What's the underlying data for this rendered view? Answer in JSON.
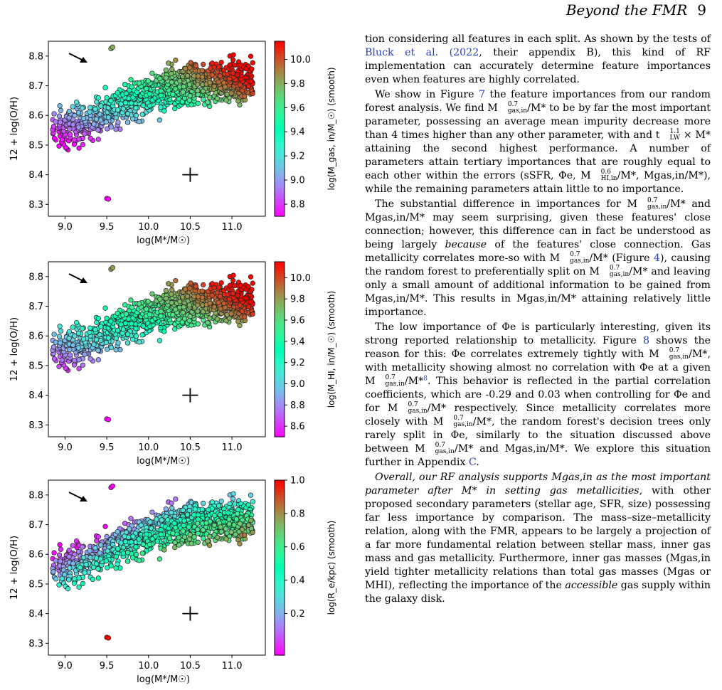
{
  "header": {
    "title": "Beyond the FMR",
    "page": "9"
  },
  "figures": [
    {
      "cbar_label": "log(M_gas, in/M_☉) (smooth)",
      "cbar_ticks": [
        8.8,
        9.0,
        9.2,
        9.4,
        9.6,
        9.8,
        10.0
      ],
      "cbar_range": [
        8.7,
        10.15
      ],
      "color_mode": "gasin"
    },
    {
      "cbar_label": "log(M_HI, in/M_☉) (smooth)",
      "cbar_ticks": [
        8.6,
        8.8,
        9.0,
        9.2,
        9.4,
        9.6,
        9.8,
        10.0
      ],
      "cbar_range": [
        8.5,
        10.15
      ],
      "color_mode": "hiin"
    },
    {
      "cbar_label": "log(R_e/kpc) (smooth)",
      "cbar_ticks": [
        0.2,
        0.4,
        0.6,
        0.8,
        1.0
      ],
      "cbar_range": [
        -0.05,
        1.0
      ],
      "color_mode": "re"
    }
  ],
  "chart_data": [
    {
      "type": "scatter",
      "xlabel": "log(M*/M☉)",
      "ylabel": "12 + log(O/H)",
      "xlim": [
        8.8,
        11.4
      ],
      "ylim": [
        8.26,
        8.85
      ],
      "x_ticks": [
        9.0,
        9.5,
        10.0,
        10.5,
        11.0
      ],
      "y_ticks": [
        8.3,
        8.4,
        8.5,
        8.6,
        8.7,
        8.8
      ],
      "colorbar": "log(M_gas,in/M☉) (smooth)",
      "error_cross": {
        "x": 10.5,
        "y": 8.4
      }
    },
    {
      "type": "scatter",
      "xlabel": "log(M*/M☉)",
      "ylabel": "12 + log(O/H)",
      "xlim": [
        8.8,
        11.4
      ],
      "ylim": [
        8.26,
        8.85
      ],
      "x_ticks": [
        9.0,
        9.5,
        10.0,
        10.5,
        11.0
      ],
      "y_ticks": [
        8.3,
        8.4,
        8.5,
        8.6,
        8.7,
        8.8
      ],
      "colorbar": "log(M_HI,in/M☉) (smooth)",
      "error_cross": {
        "x": 10.5,
        "y": 8.4
      }
    },
    {
      "type": "scatter",
      "xlabel": "log(M*/M☉)",
      "ylabel": "12 + log(O/H)",
      "xlim": [
        8.8,
        11.4
      ],
      "ylim": [
        8.26,
        8.85
      ],
      "x_ticks": [
        9.0,
        9.5,
        10.0,
        10.5,
        11.0
      ],
      "y_ticks": [
        8.3,
        8.4,
        8.5,
        8.6,
        8.7,
        8.8
      ],
      "colorbar": "log(R_e/kpc) (smooth)",
      "error_cross": {
        "x": 10.5,
        "y": 8.4
      }
    }
  ],
  "text": {
    "p1a": "tion considering all features in each split. As shown by the tests of ",
    "p1_cite": "Bluck et al. (",
    "p1_year": "2022",
    "p1b": ", their appendix B), this kind of RF implementation can accurately determine feature importances even when features are highly correlated.",
    "p2a": "We show in Figure ",
    "p2_fig": "7",
    "p2b": " the feature importances from our random forest analysis. We find M",
    "p2c": "/M* to be by far the most important parameter, possessing an average mean impurity decrease more than 4 times higher than any other parameter, with and t",
    "p2d": " × M* attaining the second highest performance. A number of parameters attain tertiary importances that are roughly equal to each other within the errors (sSFR, Φe, M",
    "p2e": "/M*, Mgas,in/M*), while the remaining parameters attain little to no importance.",
    "p3a": "The substantial difference in importances for M",
    "p3b": "/M* and Mgas,in/M* may seem surprising, given these features' close connection; however, this difference can in fact be understood as being largely ",
    "p3_because": "because",
    "p3c": " of the features' close connection. Gas metallicity correlates more-so with M",
    "p3d": "/M* (Figure ",
    "p3_fig": "4",
    "p3e": "), causing the random forest to preferentially split on M",
    "p3f": "/M* and leaving only a small amount of additional information to be gained from Mgas,in/M*. This results in Mgas,in/M* attaining relatively little importance.",
    "p4a": "The low importance of Φe is particularly interesting, given its strong reported relationship to metallicity. Figure ",
    "p4_fig": "8",
    "p4b": " shows the reason for this: Φe correlates extremely tightly with M",
    "p4c": "/M*, with metallicity showing almost no correlation with Φe at a given M",
    "p4d": "/M*",
    "p4_fn": "8",
    "p4e": ". This behavior is reflected in the partial correlation coefficients, which are -0.29 and 0.03 when controlling for Φe and for M",
    "p4f": "/M* respectively. Since metallicity correlates more closely with M",
    "p4g": "/M*, the random forest's decision trees only rarely split in Φe, similarly to the situation discussed above between M",
    "p4h": "/M* and Mgas,in/M*. We explore this situation further in Appendix ",
    "p4_app": "C",
    "p4i": ".",
    "p5_italic": "Overall, our RF analysis supports Mgas,in as the most important parameter after M* in setting gas metallicities",
    "p5b": ", with other proposed secondary parameters (stellar age, SFR, size) possessing far less importance by comparison. The mass–size–metallicity relation, along with the FMR, appears to be largely a projection of a far more fundamental relation between stellar mass, inner gas mass and gas metallicity. Furthermore, inner gas masses (Mgas,in yield tighter metallicity relations than total gas masses (Mgas or MHI), reflecting the importance of the ",
    "p5_accessible": "accessible",
    "p5c": " gas supply within the galaxy disk.",
    "sup07": "0.7",
    "sub_gasin": "gas,in",
    "sup11": "1.1",
    "sub_lw": "LW",
    "sup06": "0.6",
    "sub_hiin": "HI,in"
  }
}
